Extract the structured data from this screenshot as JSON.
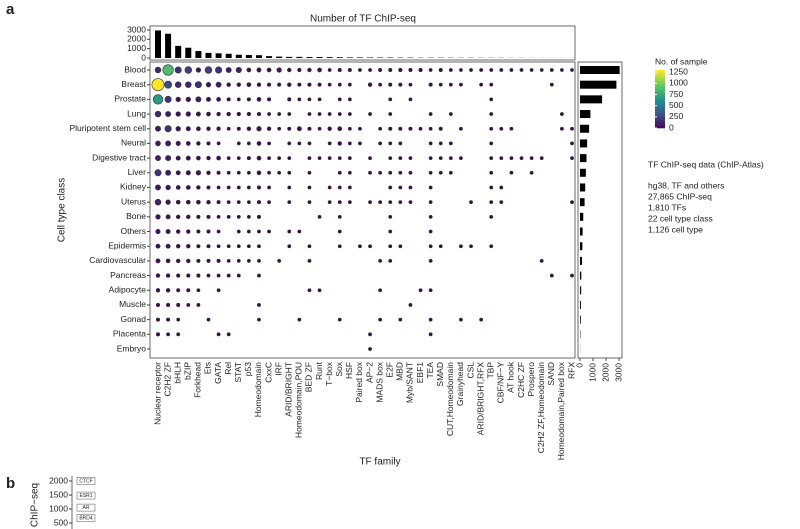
{
  "panels": [
    "a",
    "b"
  ],
  "notes": {
    "title": "TF ChIP-seq data (ChIP-Atlas)",
    "lines": [
      "hg38, TF and others",
      "27,865 ChIP-seq",
      "1,810 TFs",
      "22 cell type class",
      "1,126 cell type"
    ]
  },
  "chart_data": [
    {
      "type": "bar",
      "title": "Number of TF ChIP-seq",
      "ylim": [
        0,
        3000
      ],
      "yticks": [
        0,
        1000,
        2000,
        3000
      ],
      "color": "#000000",
      "values": [
        2950,
        2600,
        1300,
        1100,
        750,
        550,
        500,
        450,
        350,
        320,
        300,
        200,
        150,
        120,
        120,
        100,
        100,
        90,
        80,
        60,
        60,
        50,
        50,
        50,
        40,
        40,
        30,
        30,
        30,
        30,
        25,
        25,
        20,
        20,
        20,
        15,
        15,
        10,
        10,
        10,
        8,
        8
      ]
    },
    {
      "type": "dotmatrix",
      "xlabel": "TF family",
      "ylabel": "Cell type class",
      "legend_title": "No. of sample",
      "colorlim": [
        0,
        1300
      ],
      "colorticks": [
        0,
        250,
        500,
        750,
        1000,
        1250
      ],
      "columns": [
        "Nuclear receptor",
        "C2H2 ZF",
        "bHLH",
        "bZIP",
        "Forkhead",
        "Ets",
        "GATA",
        "Rel",
        "STAT",
        "p53",
        "Homeodomain",
        "CxxC",
        "IRF",
        "ARID/BRIGHT",
        "Homeodomain,POU",
        "BED ZF",
        "Runt",
        "T−box",
        "Sox",
        "HSF",
        "Paired box",
        "AP−2",
        "MADS box",
        "E2F",
        "MBD",
        "Myb/SANT",
        "EBF1",
        "TEA",
        "SMAD",
        "CUT,Homeodomain",
        "Grainyhead",
        "CSL",
        "ARID/BRIGHT,RFX",
        "TBP",
        "CBF/NF−Y",
        "AT hook",
        "C2HC ZF",
        "Prospero",
        "C2H2 ZF,Homeodomain",
        "SAND",
        "Homeodomain,Paired box",
        "RFX"
      ],
      "rows": [
        "Blood",
        "Breast",
        "Prostate",
        "Lung",
        "Pluripotent stem cell",
        "Neural",
        "Digestive tract",
        "Liver",
        "Kidney",
        "Uterus",
        "Bone",
        "Others",
        "Epidermis",
        "Cardiovascular",
        "Pancreas",
        "Adipocyte",
        "Muscle",
        "Gonad",
        "Placenta",
        "Embryo"
      ],
      "values": [
        [
          150,
          900,
          200,
          250,
          60,
          250,
          200,
          100,
          120,
          30,
          40,
          30,
          60,
          20,
          15,
          20,
          30,
          5,
          10,
          10,
          5,
          5,
          10,
          10,
          15,
          10,
          15,
          5,
          10,
          5,
          3,
          5,
          5,
          5,
          5,
          5,
          5,
          3,
          3,
          5,
          3,
          3
        ],
        [
          1300,
          300,
          150,
          150,
          200,
          60,
          100,
          20,
          20,
          30,
          20,
          15,
          10,
          20,
          10,
          15,
          10,
          5,
          5,
          5,
          null,
          20,
          5,
          10,
          10,
          5,
          null,
          10,
          5,
          5,
          5,
          null,
          5,
          5,
          null,
          null,
          null,
          null,
          null,
          5,
          null,
          null
        ],
        [
          700,
          200,
          60,
          60,
          100,
          40,
          30,
          10,
          5,
          10,
          30,
          10,
          null,
          10,
          5,
          5,
          5,
          null,
          5,
          5,
          null,
          null,
          null,
          5,
          null,
          5,
          null,
          null,
          null,
          null,
          null,
          null,
          null,
          5,
          null,
          null,
          null,
          null,
          null,
          null,
          null,
          null
        ],
        [
          150,
          100,
          60,
          60,
          40,
          30,
          20,
          20,
          15,
          15,
          10,
          5,
          5,
          5,
          null,
          5,
          5,
          5,
          5,
          5,
          null,
          5,
          null,
          5,
          null,
          null,
          null,
          5,
          null,
          5,
          null,
          null,
          null,
          5,
          null,
          null,
          null,
          null,
          null,
          null,
          5,
          null
        ],
        [
          100,
          200,
          60,
          40,
          30,
          20,
          20,
          5,
          10,
          20,
          60,
          20,
          5,
          10,
          40,
          10,
          5,
          20,
          30,
          5,
          5,
          null,
          5,
          10,
          10,
          10,
          5,
          5,
          10,
          null,
          5,
          null,
          null,
          5,
          5,
          5,
          null,
          null,
          null,
          null,
          5,
          5
        ],
        [
          80,
          100,
          50,
          30,
          20,
          10,
          5,
          null,
          5,
          5,
          30,
          5,
          null,
          5,
          5,
          5,
          null,
          5,
          20,
          5,
          5,
          null,
          5,
          5,
          5,
          null,
          null,
          5,
          5,
          5,
          null,
          null,
          null,
          5,
          null,
          null,
          null,
          null,
          null,
          null,
          null,
          5
        ],
        [
          100,
          100,
          40,
          40,
          30,
          20,
          30,
          5,
          5,
          10,
          30,
          5,
          5,
          5,
          null,
          5,
          5,
          5,
          5,
          5,
          null,
          5,
          null,
          5,
          5,
          5,
          null,
          5,
          5,
          5,
          5,
          null,
          null,
          5,
          5,
          5,
          5,
          5,
          5,
          null,
          null,
          5
        ],
        [
          200,
          100,
          40,
          50,
          60,
          20,
          10,
          5,
          5,
          5,
          30,
          5,
          5,
          5,
          null,
          5,
          null,
          null,
          5,
          5,
          null,
          5,
          5,
          5,
          5,
          5,
          null,
          5,
          5,
          5,
          null,
          null,
          null,
          5,
          null,
          5,
          null,
          5,
          null,
          null,
          null,
          null
        ],
        [
          100,
          60,
          30,
          30,
          20,
          10,
          5,
          5,
          5,
          5,
          10,
          5,
          null,
          5,
          null,
          5,
          null,
          5,
          5,
          5,
          null,
          null,
          null,
          5,
          5,
          5,
          null,
          5,
          null,
          null,
          null,
          null,
          null,
          5,
          5,
          null,
          null,
          null,
          null,
          null,
          null,
          null
        ],
        [
          150,
          60,
          30,
          30,
          30,
          20,
          10,
          5,
          5,
          5,
          10,
          5,
          null,
          5,
          null,
          5,
          null,
          5,
          5,
          5,
          null,
          5,
          5,
          5,
          5,
          5,
          null,
          5,
          null,
          null,
          null,
          5,
          null,
          5,
          5,
          null,
          null,
          null,
          null,
          null,
          null,
          5
        ],
        [
          60,
          40,
          20,
          20,
          10,
          10,
          5,
          5,
          5,
          5,
          10,
          null,
          null,
          null,
          null,
          null,
          5,
          null,
          5,
          null,
          null,
          null,
          null,
          5,
          null,
          null,
          null,
          5,
          null,
          null,
          null,
          null,
          null,
          5,
          null,
          null,
          null,
          null,
          null,
          null,
          null,
          null
        ],
        [
          50,
          40,
          20,
          20,
          10,
          10,
          5,
          null,
          5,
          5,
          5,
          5,
          null,
          5,
          5,
          null,
          null,
          null,
          5,
          null,
          null,
          null,
          null,
          5,
          null,
          null,
          null,
          5,
          null,
          null,
          null,
          null,
          null,
          null,
          null,
          null,
          null,
          null,
          null,
          null,
          null,
          null
        ],
        [
          40,
          40,
          20,
          20,
          10,
          10,
          5,
          5,
          5,
          5,
          5,
          null,
          null,
          5,
          null,
          5,
          null,
          null,
          5,
          null,
          5,
          5,
          null,
          5,
          5,
          null,
          null,
          5,
          5,
          null,
          5,
          5,
          null,
          5,
          null,
          null,
          null,
          null,
          null,
          null,
          null,
          null
        ],
        [
          40,
          30,
          20,
          20,
          10,
          10,
          10,
          5,
          5,
          5,
          5,
          null,
          5,
          null,
          null,
          5,
          null,
          null,
          null,
          null,
          null,
          null,
          5,
          5,
          null,
          null,
          null,
          5,
          null,
          null,
          null,
          null,
          null,
          null,
          null,
          null,
          null,
          null,
          5,
          null,
          null,
          null
        ],
        [
          20,
          20,
          10,
          10,
          10,
          5,
          5,
          5,
          5,
          null,
          5,
          null,
          null,
          null,
          null,
          null,
          null,
          null,
          null,
          null,
          null,
          null,
          null,
          null,
          null,
          null,
          null,
          null,
          null,
          null,
          null,
          null,
          null,
          null,
          null,
          null,
          null,
          null,
          null,
          5,
          null,
          5
        ],
        [
          20,
          20,
          10,
          10,
          5,
          null,
          5,
          null,
          null,
          null,
          null,
          null,
          null,
          null,
          null,
          5,
          5,
          null,
          null,
          null,
          null,
          null,
          5,
          null,
          null,
          null,
          5,
          5,
          null,
          null,
          null,
          null,
          null,
          null,
          null,
          null,
          null,
          null,
          null,
          null,
          null,
          null
        ],
        [
          10,
          10,
          10,
          5,
          5,
          null,
          null,
          null,
          null,
          null,
          5,
          null,
          null,
          null,
          null,
          null,
          null,
          null,
          null,
          null,
          null,
          null,
          null,
          null,
          null,
          5,
          null,
          null,
          null,
          null,
          null,
          null,
          null,
          null,
          null,
          null,
          null,
          null,
          null,
          null,
          null,
          null
        ],
        [
          10,
          10,
          5,
          null,
          null,
          5,
          null,
          null,
          null,
          null,
          5,
          null,
          null,
          null,
          5,
          null,
          null,
          null,
          5,
          null,
          null,
          null,
          5,
          null,
          5,
          null,
          null,
          5,
          null,
          null,
          5,
          null,
          5,
          null,
          null,
          null,
          null,
          null,
          null,
          null,
          null,
          null
        ],
        [
          10,
          5,
          5,
          null,
          null,
          null,
          5,
          5,
          null,
          null,
          null,
          null,
          null,
          null,
          null,
          null,
          null,
          null,
          null,
          null,
          null,
          5,
          null,
          null,
          null,
          null,
          null,
          5,
          null,
          null,
          null,
          null,
          null,
          null,
          null,
          null,
          null,
          null,
          null,
          null,
          null,
          null
        ],
        [
          null,
          null,
          null,
          null,
          null,
          null,
          null,
          null,
          null,
          null,
          null,
          null,
          null,
          null,
          null,
          null,
          null,
          null,
          null,
          null,
          null,
          5,
          null,
          null,
          null,
          null,
          null,
          null,
          null,
          null,
          null,
          null,
          null,
          null,
          null,
          null,
          null,
          null,
          null,
          null,
          null,
          null
        ]
      ]
    },
    {
      "type": "hbar",
      "xlim": [
        0,
        3000
      ],
      "xticks": [
        0,
        1000,
        2000,
        3000
      ],
      "color": "#000000",
      "values": [
        3050,
        2800,
        1700,
        800,
        700,
        550,
        500,
        450,
        400,
        350,
        250,
        200,
        180,
        150,
        100,
        90,
        70,
        60,
        30,
        10
      ]
    },
    {
      "type": "labelrank",
      "ylabel": "ChIP−seq",
      "ylim": [
        0,
        2000
      ],
      "yticks": [
        500,
        1000,
        1500,
        2000
      ],
      "labels": [
        "CTCF",
        "ESR1",
        "AR",
        "BRD4"
      ],
      "values": [
        2000,
        1480,
        1050,
        680
      ]
    }
  ]
}
